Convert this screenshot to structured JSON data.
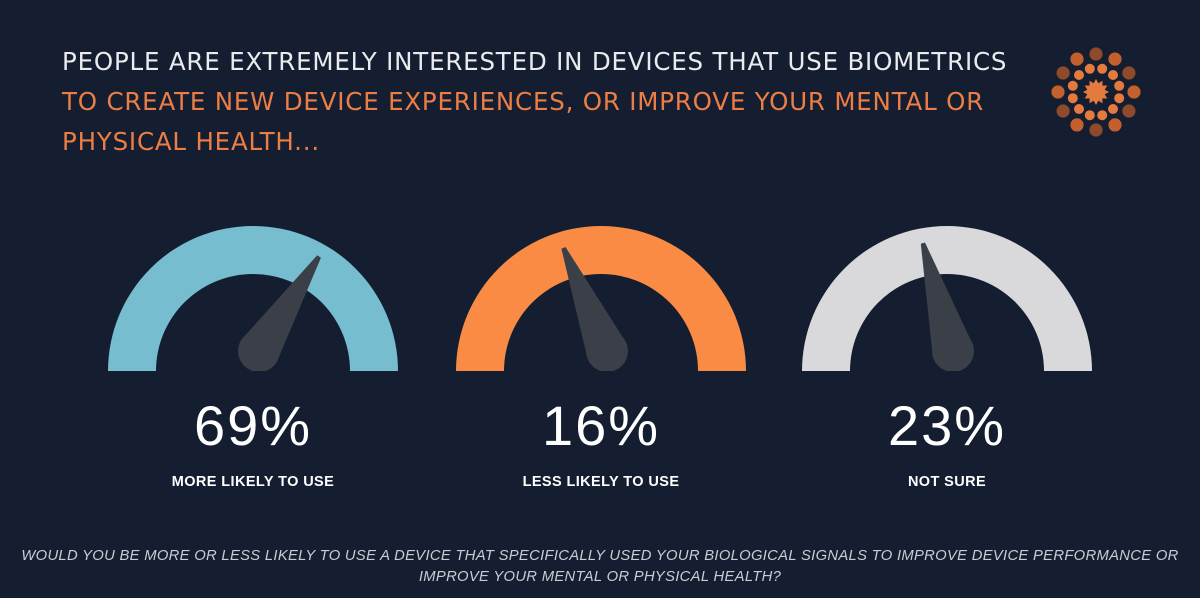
{
  "headline": {
    "lead": "PEOPLE ARE EXTREMELY INTERESTED IN DEVICES THAT USE BIOMETRICS",
    "accent": "TO CREATE NEW DEVICE EXPERIENCES, OR IMPROVE YOUR MENTAL OR PHYSICAL HEALTH..."
  },
  "logo": {
    "icon": "sunburst-dots-icon",
    "colors": [
      "#e57a3e",
      "#c4602d",
      "#8e4a2b"
    ]
  },
  "gauges": [
    {
      "percent_label": "69%",
      "value": 69,
      "label": "MORE LIKELY TO USE",
      "color": "#76bdd0"
    },
    {
      "percent_label": "16%",
      "value": 16,
      "label": "LESS LIKELY TO USE",
      "color": "#f98b45"
    },
    {
      "percent_label": "23%",
      "value": 23,
      "label": "NOT SURE",
      "color": "#d9d9dc"
    }
  ],
  "needle_color": "#3b3f48",
  "background": "#141e30",
  "footer": {
    "question": "WOULD YOU BE MORE OR LESS LIKELY TO USE A DEVICE THAT SPECIFICALLY USED YOUR BIOLOGICAL SIGNALS TO IMPROVE DEVICE PERFORMANCE OR IMPROVE YOUR MENTAL OR PHYSICAL HEALTH?"
  }
}
